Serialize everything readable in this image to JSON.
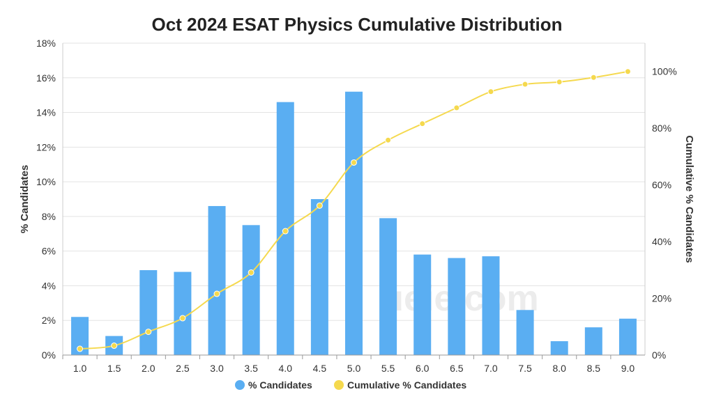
{
  "chart_data": {
    "type": "bar+line",
    "title": "Oct 2024 ESAT Physics Cumulative Distribution",
    "xlabel": "",
    "ylabel": "% Candidates",
    "y2label": "Cumulative % Candidates",
    "categories": [
      "1.0",
      "1.5",
      "2.0",
      "2.5",
      "3.0",
      "3.5",
      "4.0",
      "4.5",
      "5.0",
      "5.5",
      "6.0",
      "6.5",
      "7.0",
      "7.5",
      "8.0",
      "8.5",
      "9.0"
    ],
    "series": [
      {
        "name": "% Candidates",
        "type": "bar",
        "axis": "left",
        "color": "#5aaef2",
        "values": [
          2.2,
          1.1,
          4.9,
          4.8,
          8.6,
          7.5,
          14.6,
          9.0,
          15.2,
          7.9,
          5.8,
          5.6,
          5.7,
          2.6,
          0.8,
          1.6,
          2.1
        ]
      },
      {
        "name": "Cumulative % Candidates",
        "type": "line",
        "axis": "right",
        "color": "#f5d94e",
        "values": [
          2.2,
          3.3,
          8.2,
          13.0,
          21.6,
          29.1,
          43.7,
          52.7,
          67.9,
          75.8,
          81.6,
          87.2,
          92.9,
          95.5,
          96.3,
          97.9,
          100.0
        ]
      }
    ],
    "ylim": [
      0,
      18
    ],
    "yticks": [
      "0%",
      "2%",
      "4%",
      "6%",
      "8%",
      "10%",
      "12%",
      "14%",
      "16%",
      "18%"
    ],
    "y2lim": [
      0,
      110
    ],
    "y2ticks": [
      "0%",
      "20%",
      "40%",
      "60%",
      "80%",
      "100%"
    ],
    "grid": true,
    "legend": "bottom"
  },
  "watermark": "ueie.com"
}
